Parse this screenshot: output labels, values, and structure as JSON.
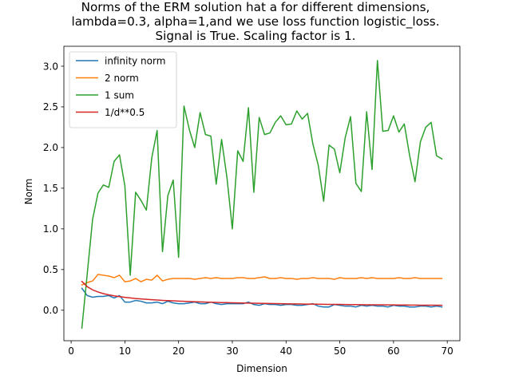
{
  "chart_data": {
    "type": "line",
    "title_lines": [
      "Norms of the ERM solution hat a for different dimensions,",
      "lambda=0.3, alpha=1,and we use loss function logistic_loss.",
      "Signal is True. Scaling factor is 1."
    ],
    "xlabel": "Dimension",
    "ylabel": "Norm",
    "xlim": [
      -1.35,
      72.35
    ],
    "ylim": [
      -0.375,
      3.245
    ],
    "xticks": [
      0,
      10,
      20,
      30,
      40,
      50,
      60,
      70
    ],
    "yticks": [
      0.0,
      0.5,
      1.0,
      1.5,
      2.0,
      2.5,
      3.0
    ],
    "ytick_labels": [
      "0.0",
      "0.5",
      "1.0",
      "1.5",
      "2.0",
      "2.5",
      "3.0"
    ],
    "grid": false,
    "legend_position": "top-left",
    "x": [
      2,
      3,
      4,
      5,
      6,
      7,
      8,
      9,
      10,
      11,
      12,
      13,
      14,
      15,
      16,
      17,
      18,
      19,
      20,
      21,
      22,
      23,
      24,
      25,
      26,
      27,
      28,
      29,
      30,
      31,
      32,
      33,
      34,
      35,
      36,
      37,
      38,
      39,
      40,
      41,
      42,
      43,
      44,
      45,
      46,
      47,
      48,
      49,
      50,
      51,
      52,
      53,
      54,
      55,
      56,
      57,
      58,
      59,
      60,
      61,
      62,
      63,
      64,
      65,
      66,
      67,
      68,
      69
    ],
    "series": [
      {
        "name": "infinity norm",
        "color": "#1f77b4",
        "values": [
          0.27,
          0.18,
          0.16,
          0.17,
          0.17,
          0.18,
          0.15,
          0.18,
          0.1,
          0.1,
          0.12,
          0.11,
          0.09,
          0.09,
          0.1,
          0.08,
          0.11,
          0.09,
          0.08,
          0.08,
          0.09,
          0.1,
          0.08,
          0.08,
          0.1,
          0.08,
          0.07,
          0.08,
          0.08,
          0.08,
          0.08,
          0.1,
          0.07,
          0.06,
          0.08,
          0.07,
          0.07,
          0.06,
          0.07,
          0.07,
          0.06,
          0.06,
          0.07,
          0.08,
          0.05,
          0.04,
          0.04,
          0.07,
          0.06,
          0.05,
          0.05,
          0.04,
          0.06,
          0.05,
          0.06,
          0.05,
          0.05,
          0.04,
          0.06,
          0.05,
          0.05,
          0.04,
          0.04,
          0.05,
          0.05,
          0.04,
          0.05,
          0.04
        ]
      },
      {
        "name": "2 norm",
        "color": "#ff7f0e",
        "values": [
          0.31,
          0.34,
          0.36,
          0.44,
          0.43,
          0.42,
          0.4,
          0.43,
          0.35,
          0.36,
          0.39,
          0.35,
          0.38,
          0.37,
          0.43,
          0.36,
          0.38,
          0.39,
          0.39,
          0.39,
          0.39,
          0.38,
          0.39,
          0.4,
          0.39,
          0.4,
          0.39,
          0.39,
          0.39,
          0.4,
          0.4,
          0.39,
          0.39,
          0.4,
          0.41,
          0.39,
          0.39,
          0.4,
          0.39,
          0.39,
          0.38,
          0.39,
          0.39,
          0.4,
          0.39,
          0.39,
          0.39,
          0.38,
          0.4,
          0.39,
          0.39,
          0.39,
          0.4,
          0.39,
          0.4,
          0.39,
          0.39,
          0.39,
          0.39,
          0.4,
          0.39,
          0.39,
          0.4,
          0.39,
          0.39,
          0.39,
          0.39,
          0.39
        ]
      },
      {
        "name": "1 sum",
        "color": "#2ca02c",
        "values": [
          -0.22,
          0.45,
          1.12,
          1.44,
          1.54,
          1.51,
          1.83,
          1.91,
          1.53,
          0.43,
          1.45,
          1.35,
          1.23,
          1.87,
          2.21,
          0.72,
          1.41,
          1.6,
          0.65,
          2.51,
          2.22,
          2.0,
          2.43,
          2.16,
          2.14,
          1.55,
          2.1,
          1.63,
          1.0,
          1.96,
          1.83,
          2.49,
          1.45,
          2.37,
          2.16,
          2.18,
          2.31,
          2.39,
          2.28,
          2.29,
          2.45,
          2.35,
          2.42,
          2.04,
          1.78,
          1.34,
          2.03,
          1.98,
          1.69,
          2.12,
          2.38,
          1.56,
          1.46,
          2.44,
          1.73,
          3.07,
          2.2,
          2.21,
          2.39,
          2.19,
          2.29,
          1.9,
          1.58,
          2.07,
          2.25,
          2.31,
          1.9,
          1.86
        ]
      },
      {
        "name": "1/d**0.5",
        "color": "#d62728",
        "values": [
          0.354,
          0.289,
          0.25,
          0.224,
          0.204,
          0.189,
          0.177,
          0.167,
          0.158,
          0.151,
          0.144,
          0.139,
          0.134,
          0.129,
          0.125,
          0.121,
          0.118,
          0.115,
          0.112,
          0.109,
          0.107,
          0.104,
          0.102,
          0.1,
          0.098,
          0.096,
          0.094,
          0.093,
          0.091,
          0.09,
          0.088,
          0.087,
          0.086,
          0.085,
          0.083,
          0.082,
          0.081,
          0.08,
          0.079,
          0.078,
          0.077,
          0.076,
          0.075,
          0.075,
          0.074,
          0.073,
          0.072,
          0.071,
          0.071,
          0.07,
          0.069,
          0.069,
          0.068,
          0.067,
          0.067,
          0.066,
          0.066,
          0.065,
          0.065,
          0.064,
          0.064,
          0.063,
          0.063,
          0.062,
          0.062,
          0.061,
          0.061,
          0.06
        ]
      }
    ]
  }
}
